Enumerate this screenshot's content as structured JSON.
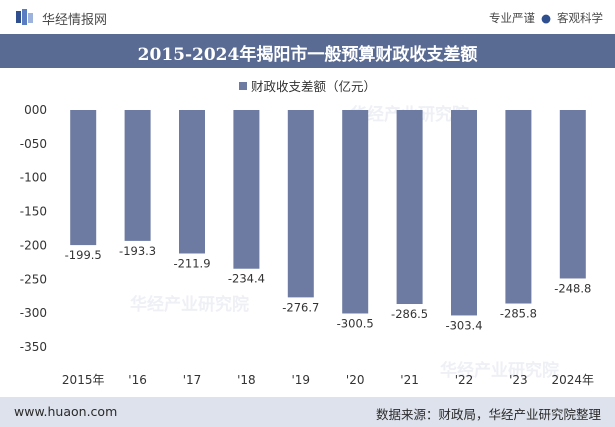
{
  "header": {
    "brand": "华经情报网",
    "tagline_left": "专业严谨",
    "tagline_right": "客观科学"
  },
  "footer": {
    "website": "www.huaon.com",
    "source": "数据来源：财政局，华经产业研究院整理"
  },
  "watermark": "华经产业研究院",
  "colors": {
    "bar": "#6d7ba2",
    "title_bg": "#5a6b93",
    "footer_bg": "#dde2ec"
  },
  "chart_data": {
    "type": "bar",
    "title": "2015-2024年揭阳市一般预算财政收支差额",
    "legend": [
      "财政收支差额（亿元）"
    ],
    "legend_position": "top-center",
    "categories": [
      "2015年",
      "'16",
      "'17",
      "'18",
      "'19",
      "'20",
      "'21",
      "'22",
      "'23",
      "2024年"
    ],
    "series": [
      {
        "name": "财政收支差额（亿元）",
        "values": [
          -199.5,
          -193.3,
          -211.9,
          -234.4,
          -276.7,
          -300.5,
          -286.5,
          -303.4,
          -285.8,
          -248.8
        ]
      }
    ],
    "data_labels": [
      "-199.5",
      "-193.3",
      "-211.9",
      "-234.4",
      "-276.7",
      "-300.5",
      "-286.5",
      "-303.4",
      "-285.8",
      "-248.8"
    ],
    "yticks": [
      "000",
      "-050",
      "-100",
      "-150",
      "-200",
      "-250",
      "-300",
      "-350"
    ],
    "ylim": [
      -350,
      0
    ],
    "grid": false
  }
}
